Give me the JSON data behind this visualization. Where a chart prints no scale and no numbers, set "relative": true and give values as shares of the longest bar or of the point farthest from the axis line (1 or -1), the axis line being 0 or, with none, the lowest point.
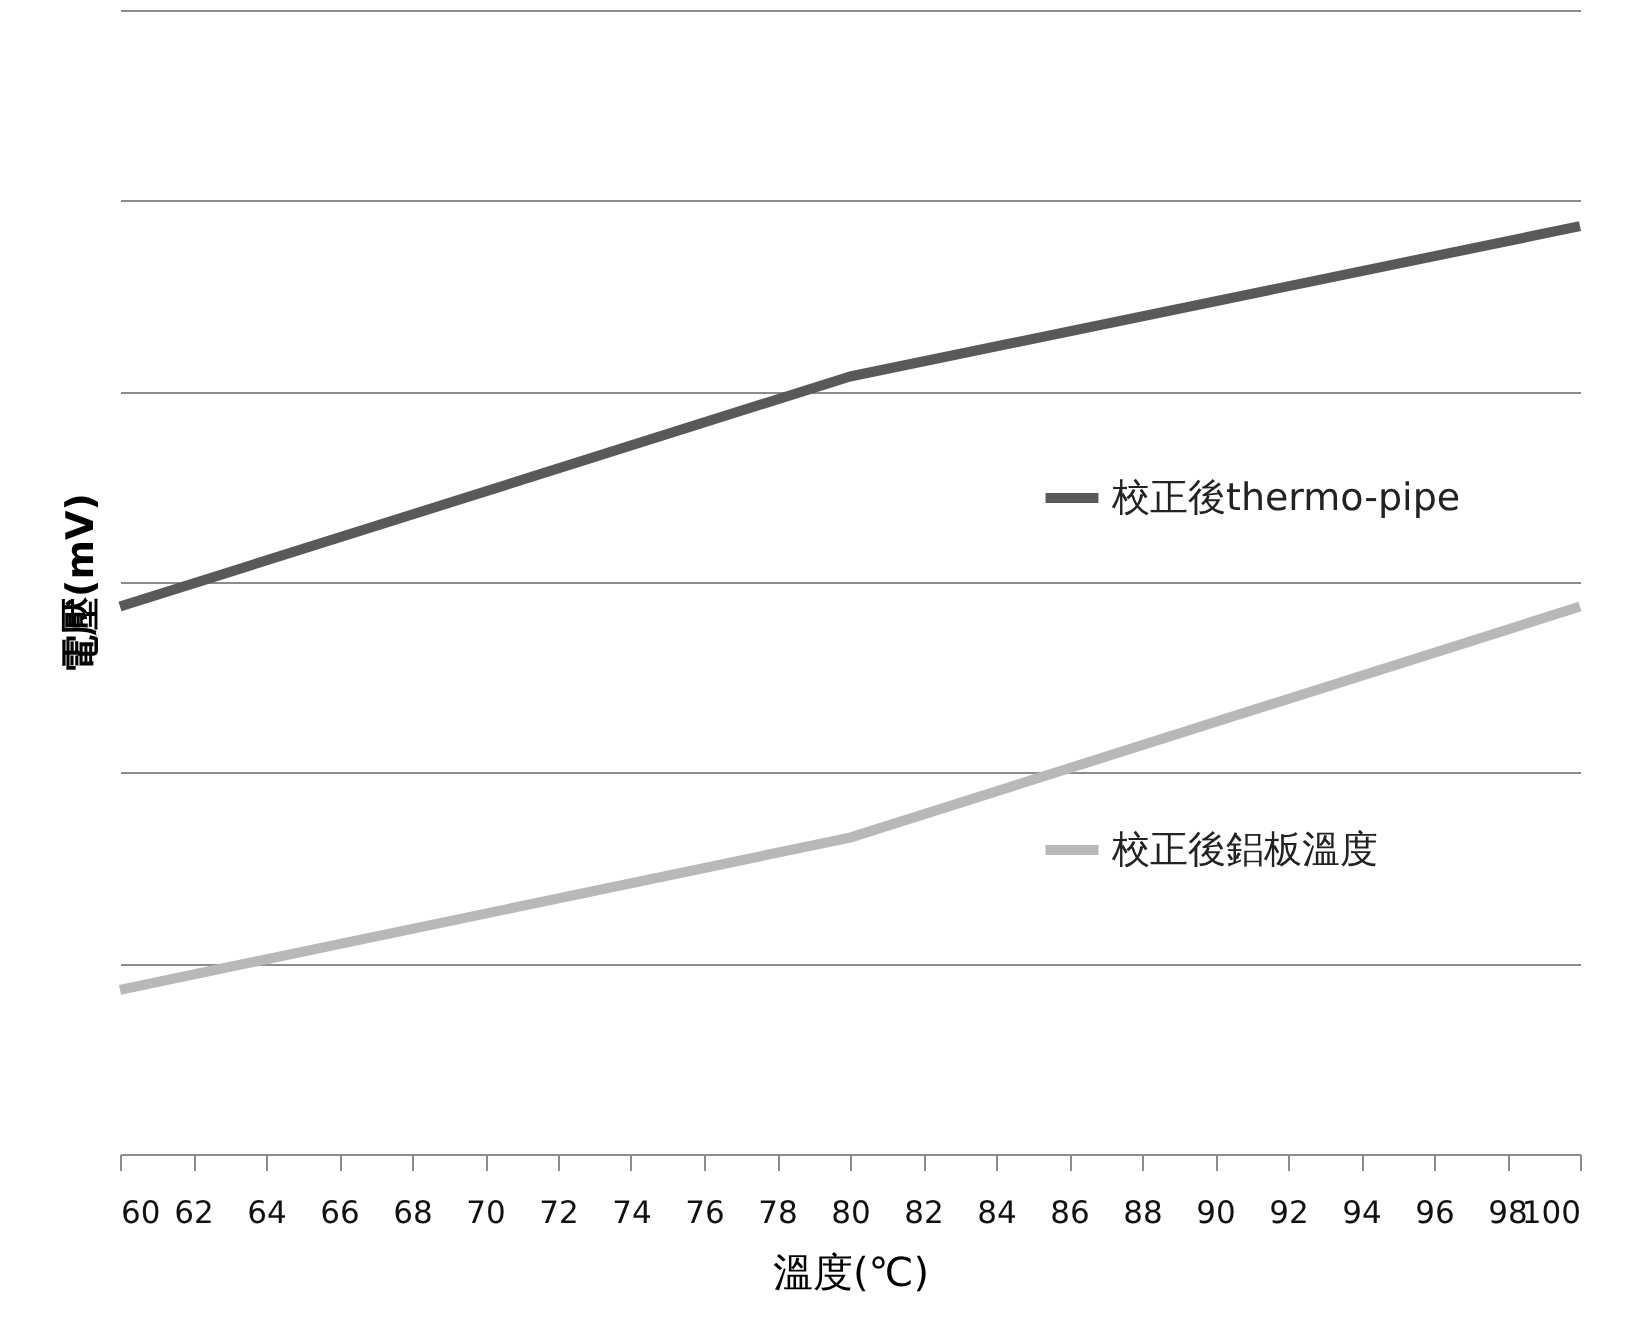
{
  "chart_data": {
    "type": "line",
    "xlabel": "溫度(℃)",
    "ylabel": "電壓(mV)",
    "relative": true,
    "x": [
      60,
      80,
      100
    ],
    "xlim": [
      60,
      100
    ],
    "xticks": [
      60,
      62,
      64,
      66,
      68,
      70,
      72,
      74,
      76,
      78,
      80,
      82,
      84,
      86,
      88,
      90,
      92,
      94,
      96,
      98,
      100
    ],
    "grid": "y",
    "legend": "right",
    "line_style": "solid",
    "marker": "none",
    "series": [
      {
        "name": "校正後thermo-pipe",
        "color": "#595959",
        "values": [
          0.59,
          0.838,
          1
        ]
      },
      {
        "name": "校正後鋁板溫度",
        "color": "#b8b8b8",
        "values": [
          0.177,
          0.341,
          0.59
        ]
      }
    ]
  }
}
